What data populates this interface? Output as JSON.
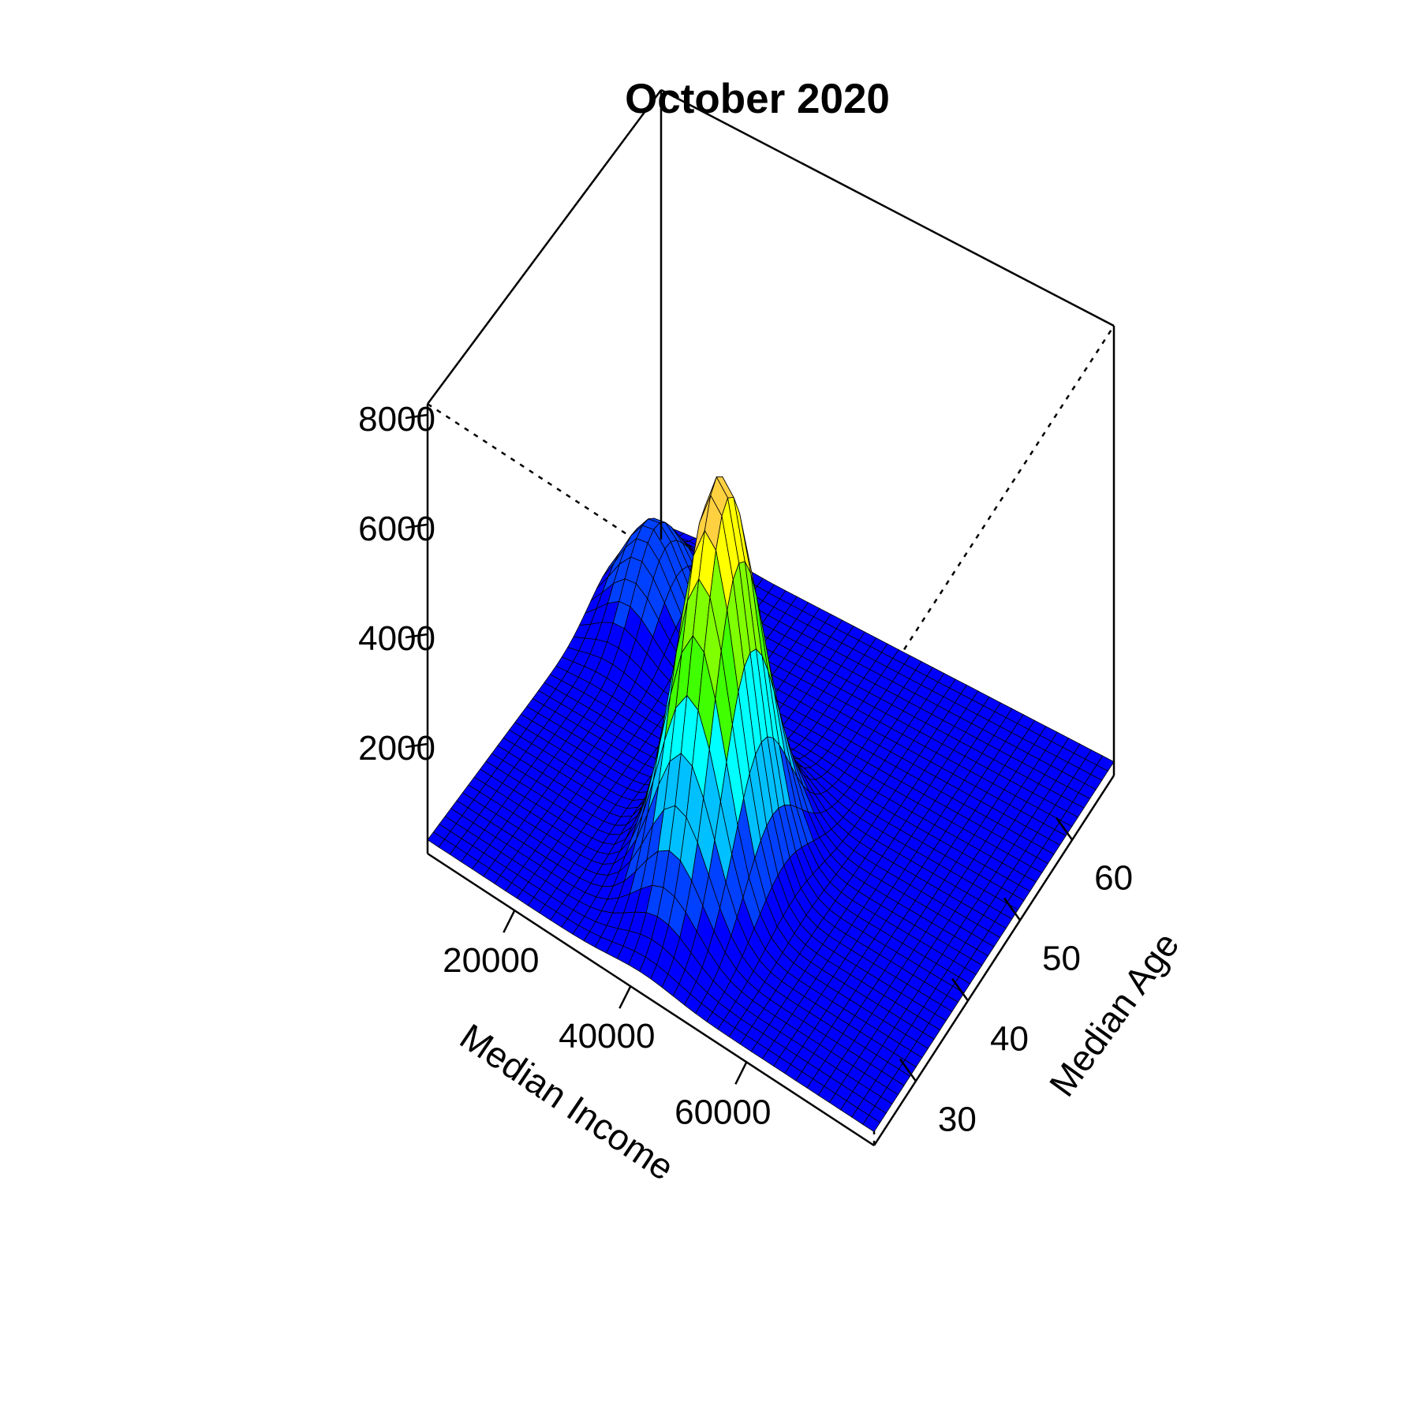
{
  "chart_data": {
    "type": "surface",
    "title": "October 2020",
    "xlabel": "Median Income",
    "ylabel": "Median Age",
    "zlabel": "",
    "xlim": [
      5000,
      82000
    ],
    "ylim": [
      22,
      68
    ],
    "zlim": [
      0,
      8200
    ],
    "x_ticks": [
      20000,
      40000,
      60000
    ],
    "y_ticks": [
      30,
      40,
      50,
      60
    ],
    "z_ticks": [
      2000,
      4000,
      6000,
      8000
    ],
    "x_tick_labels": [
      "20000",
      "40000",
      "60000"
    ],
    "y_tick_labels": [
      "30",
      "40",
      "50",
      "60"
    ],
    "z_tick_labels": [
      "2000",
      "4000",
      "6000",
      "8000"
    ],
    "surface_peaks": [
      {
        "x": 42000,
        "y": 37,
        "z": 7400
      },
      {
        "x": 12000,
        "y": 58,
        "z": 1700
      }
    ],
    "surface_baseline_z": 250,
    "colormap": [
      "#0000ff",
      "#0040ff",
      "#00c0ff",
      "#00ffff",
      "#40ff00",
      "#80ff00",
      "#ffff00",
      "#ffd040"
    ],
    "grid": false,
    "box": true
  }
}
